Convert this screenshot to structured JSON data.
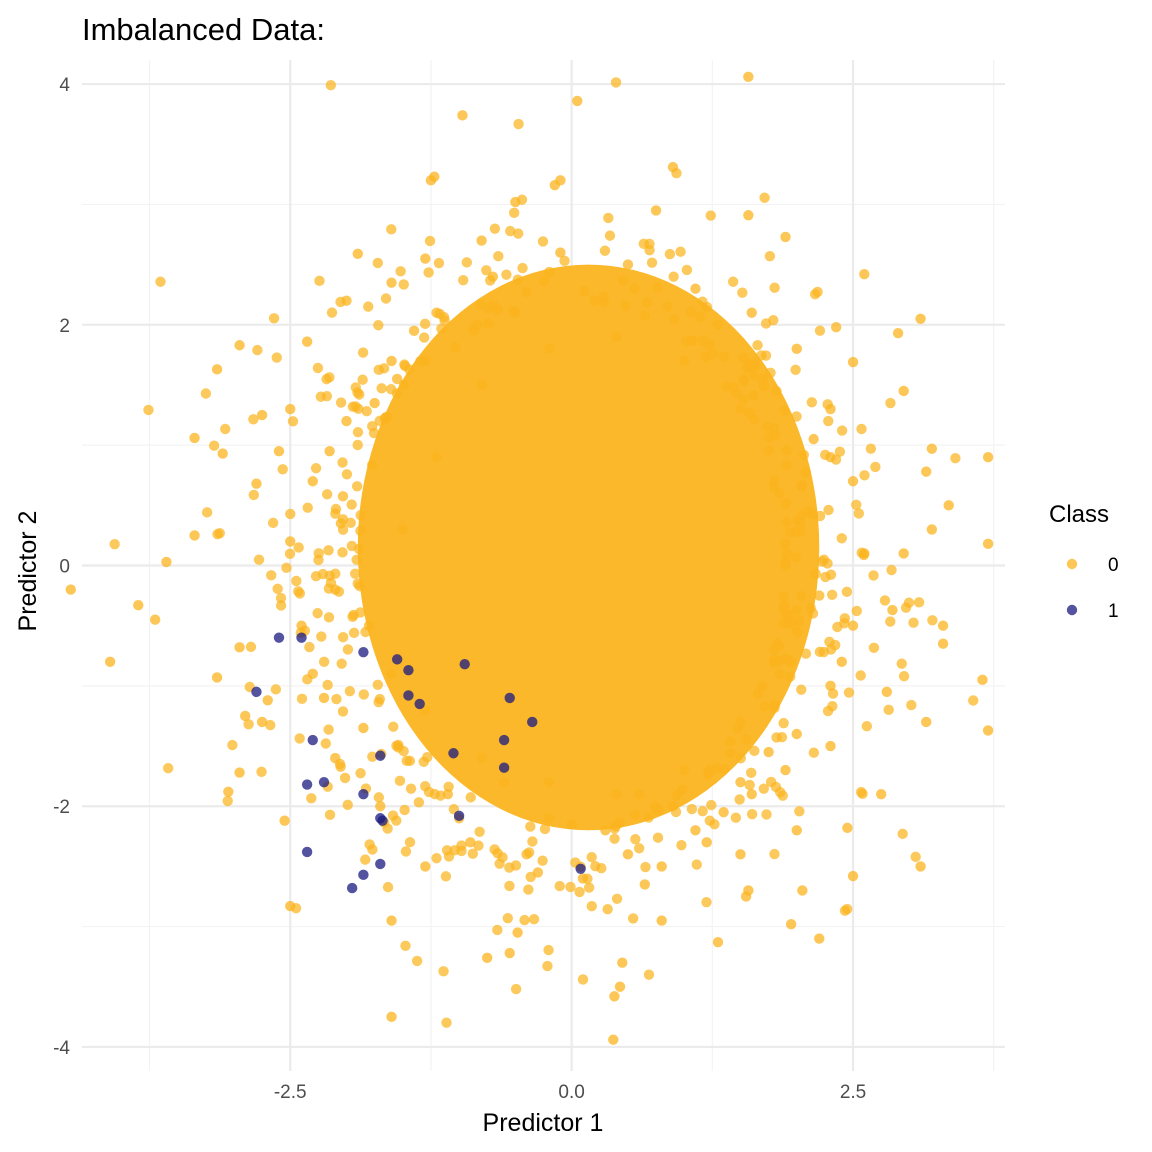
{
  "chart_data": {
    "type": "scatter",
    "title": "Imbalanced Data:",
    "xlabel": "Predictor 1",
    "ylabel": "Predictor 2",
    "xlim": [
      -4.35,
      3.85
    ],
    "ylim": [
      -4.2,
      4.2
    ],
    "x_major_ticks": [
      -2.5,
      0.0,
      2.5
    ],
    "x_minor_ticks": [
      -3.75,
      -1.25,
      1.25,
      3.75
    ],
    "y_major_ticks": [
      -4,
      -2,
      0,
      2,
      4
    ],
    "y_minor_ticks": [
      -3,
      -1,
      1,
      3
    ],
    "x_tick_labels": [
      "-2.5",
      "0.0",
      "2.5"
    ],
    "y_tick_labels": [
      "-4",
      "-2",
      "0",
      "2",
      "4"
    ],
    "grid": true,
    "legend": {
      "title": "Class",
      "placement": "right"
    },
    "colors": {
      "0": "#FBB41F",
      "1": "#1A1A80",
      "grid_major": "#EBEBEB",
      "grid_minor": "#F3F3F3"
    },
    "series": [
      {
        "name": "0",
        "points": [
          [
            1.57,
            4.06
          ],
          [
            0.05,
            3.86
          ],
          [
            -0.97,
            3.74
          ],
          [
            0.9,
            3.31
          ],
          [
            -1.25,
            3.2
          ],
          [
            -1.22,
            3.23
          ],
          [
            -0.15,
            3.16
          ],
          [
            -0.1,
            3.2
          ],
          [
            -0.5,
            3.02
          ],
          [
            1.57,
            2.91
          ],
          [
            0.75,
            2.95
          ],
          [
            -0.8,
            2.7
          ],
          [
            -1.3,
            2.55
          ],
          [
            -1.9,
            2.59
          ],
          [
            1.9,
            2.73
          ],
          [
            2.6,
            2.42
          ],
          [
            -2.0,
            2.2
          ],
          [
            -1.6,
            2.35
          ],
          [
            3.1,
            2.05
          ],
          [
            2.35,
            1.98
          ],
          [
            -2.35,
            1.86
          ],
          [
            -2.95,
            1.83
          ],
          [
            -3.15,
            1.63
          ],
          [
            2.9,
            1.93
          ],
          [
            2.95,
            1.45
          ],
          [
            2.5,
            1.69
          ],
          [
            -2.5,
            1.3
          ],
          [
            -2.75,
            1.25
          ],
          [
            -3.35,
            1.06
          ],
          [
            -3.1,
            0.93
          ],
          [
            3.2,
            0.97
          ],
          [
            3.7,
            0.9
          ],
          [
            3.15,
            0.78
          ],
          [
            -2.8,
            0.68
          ],
          [
            -2.6,
            0.95
          ],
          [
            3.35,
            0.5
          ],
          [
            3.2,
            0.3
          ],
          [
            2.95,
            0.1
          ],
          [
            -3.6,
            0.03
          ],
          [
            -3.7,
            -0.45
          ],
          [
            -3.35,
            0.25
          ],
          [
            -4.45,
            -0.2
          ],
          [
            -3.85,
            -0.33
          ],
          [
            -2.95,
            -0.68
          ],
          [
            -3.15,
            -0.93
          ],
          [
            -4.1,
            -0.8
          ],
          [
            -2.9,
            -1.25
          ],
          [
            -2.75,
            -1.3
          ],
          [
            -2.95,
            -1.72
          ],
          [
            -3.05,
            -1.88
          ],
          [
            -2.7,
            -1.12
          ],
          [
            -2.55,
            -2.12
          ],
          [
            -2.5,
            -2.83
          ],
          [
            -1.6,
            -2.95
          ],
          [
            -1.6,
            -3.75
          ],
          [
            -0.75,
            -3.26
          ],
          [
            -0.55,
            -3.22
          ],
          [
            -0.48,
            -3.05
          ],
          [
            0.45,
            -3.3
          ],
          [
            0.43,
            -3.5
          ],
          [
            0.38,
            -3.58
          ],
          [
            0.37,
            -3.94
          ],
          [
            1.3,
            -3.13
          ],
          [
            0.8,
            -2.95
          ],
          [
            1.55,
            -2.75
          ],
          [
            1.57,
            -2.7
          ],
          [
            1.95,
            -2.98
          ],
          [
            2.2,
            -3.1
          ],
          [
            2.05,
            -2.7
          ],
          [
            2.5,
            -2.58
          ],
          [
            3.1,
            -2.5
          ],
          [
            2.45,
            -2.18
          ],
          [
            3.15,
            -1.3
          ],
          [
            3.7,
            -1.37
          ],
          [
            3.65,
            -0.95
          ],
          [
            3.3,
            -0.65
          ],
          [
            3.3,
            -0.5
          ],
          [
            3.7,
            0.18
          ],
          [
            2.75,
            -1.9
          ],
          [
            2.8,
            -1.05
          ],
          [
            2.85,
            -0.37
          ],
          [
            -0.2,
            -2.1
          ],
          [
            0.3,
            -2.2
          ],
          [
            0.6,
            -1.9
          ],
          [
            0.9,
            -2.0
          ],
          [
            1.2,
            -2.3
          ],
          [
            1.5,
            -1.8
          ],
          [
            1.9,
            -1.7
          ],
          [
            2.3,
            -1.5
          ],
          [
            -0.4,
            -2.4
          ],
          [
            -0.9,
            -2.3
          ],
          [
            -1.3,
            -2.5
          ],
          [
            -1.1,
            -1.9
          ],
          [
            -0.6,
            -1.8
          ],
          [
            0.1,
            -2.6
          ],
          [
            0.8,
            -2.5
          ],
          [
            1.5,
            -2.4
          ],
          [
            2.0,
            -2.2
          ],
          [
            -1.7,
            -2.0
          ],
          [
            -2.1,
            -1.6
          ],
          [
            -2.2,
            -1.1
          ],
          [
            -2.4,
            -0.5
          ],
          [
            -2.5,
            0.2
          ],
          [
            -2.3,
            0.7
          ],
          [
            -2.0,
            1.2
          ],
          [
            -1.6,
            1.7
          ],
          [
            -1.2,
            2.1
          ],
          [
            -0.7,
            2.4
          ],
          [
            -0.1,
            2.6
          ],
          [
            0.5,
            2.5
          ],
          [
            1.1,
            2.3
          ],
          [
            1.6,
            2.1
          ],
          [
            2.0,
            1.8
          ],
          [
            2.3,
            1.3
          ],
          [
            2.5,
            0.7
          ],
          [
            2.6,
            0.1
          ],
          [
            2.5,
            -0.5
          ],
          [
            2.3,
            -1.0
          ],
          [
            2.0,
            -1.4
          ],
          [
            1.6,
            -1.9
          ],
          [
            1.1,
            -2.2
          ],
          [
            0.5,
            -2.4
          ],
          [
            -1.8,
            -0.5
          ],
          [
            -1.5,
            0.3
          ],
          [
            -1.2,
            0.9
          ],
          [
            -0.8,
            1.5
          ],
          [
            -0.2,
            1.8
          ],
          [
            0.4,
            1.9
          ],
          [
            1.0,
            1.7
          ],
          [
            1.5,
            1.3
          ],
          [
            1.8,
            0.7
          ],
          [
            1.9,
            0.0
          ],
          [
            1.8,
            -0.7
          ],
          [
            1.5,
            -1.3
          ],
          [
            1.0,
            -1.7
          ],
          [
            0.4,
            -1.9
          ],
          [
            -0.2,
            -1.8
          ],
          [
            -0.8,
            -1.6
          ],
          [
            -1.3,
            -1.2
          ],
          [
            -1.6,
            -0.9
          ],
          [
            -2.05,
            0.35
          ],
          [
            -1.9,
            -0.15
          ],
          [
            -2.15,
            0.95
          ],
          [
            -1.75,
            1.35
          ],
          [
            2.15,
            1.05
          ],
          [
            2.2,
            -0.25
          ],
          [
            2.1,
            0.45
          ],
          [
            -0.5,
            2.1
          ],
          [
            0.85,
            2.15
          ],
          [
            0.2,
            2.2
          ],
          [
            -1.0,
            -2.1
          ],
          [
            0.0,
            -2.15
          ],
          [
            1.35,
            -2.05
          ],
          [
            -2.3,
            -0.9
          ],
          [
            -2.1,
            -0.2
          ],
          [
            2.4,
            -0.8
          ],
          [
            2.3,
            0.9
          ],
          [
            -1.4,
            1.95
          ],
          [
            1.3,
            2.0
          ],
          [
            -0.3,
            -2.55
          ],
          [
            0.65,
            -2.65
          ],
          [
            -1.85,
            -1.35
          ],
          [
            1.75,
            -1.55
          ],
          [
            -1.55,
            1.55
          ],
          [
            1.7,
            1.55
          ]
        ]
      },
      {
        "name": "1",
        "points": [
          [
            -2.6,
            -0.6
          ],
          [
            -2.4,
            -0.6
          ],
          [
            -2.8,
            -1.05
          ],
          [
            -1.85,
            -0.72
          ],
          [
            -1.55,
            -0.78
          ],
          [
            -1.45,
            -0.87
          ],
          [
            -0.95,
            -0.82
          ],
          [
            -1.45,
            -1.08
          ],
          [
            -1.35,
            -1.15
          ],
          [
            -0.55,
            -1.1
          ],
          [
            -0.35,
            -1.3
          ],
          [
            -2.3,
            -1.45
          ],
          [
            -1.7,
            -1.58
          ],
          [
            -1.05,
            -1.56
          ],
          [
            -0.6,
            -1.45
          ],
          [
            -0.6,
            -1.68
          ],
          [
            -2.35,
            -1.82
          ],
          [
            -2.2,
            -1.8
          ],
          [
            -1.85,
            -1.9
          ],
          [
            -1.7,
            -2.1
          ],
          [
            -1.68,
            -2.12
          ],
          [
            -1.0,
            -2.08
          ],
          [
            -2.35,
            -2.38
          ],
          [
            -1.7,
            -2.48
          ],
          [
            -1.85,
            -2.57
          ],
          [
            -1.95,
            -2.68
          ],
          [
            0.08,
            -2.52
          ]
        ]
      }
    ]
  }
}
